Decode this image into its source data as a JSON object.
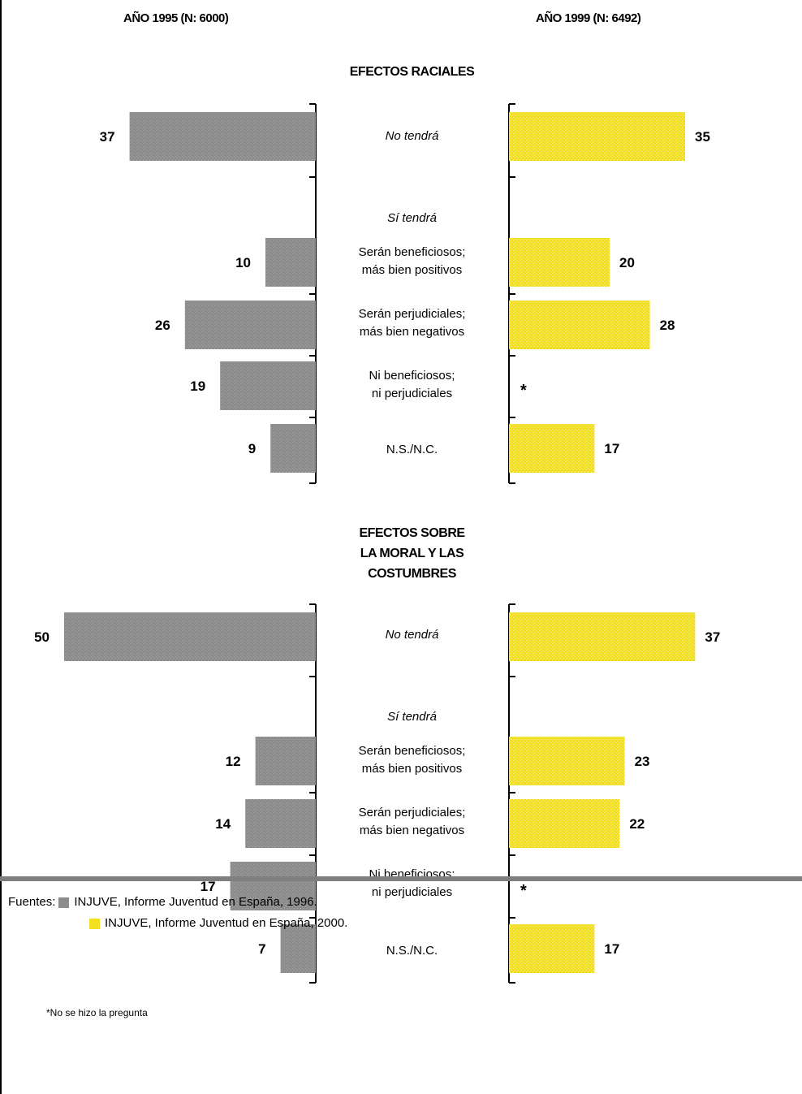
{
  "chart_data": {
    "type": "bar",
    "headers": {
      "left": "AÑO 1995 (N: 6000)",
      "right": "AÑO 1999 (N: 6492)"
    },
    "colors": {
      "left": "#8c8c8c",
      "right": "#f2e020"
    },
    "missing_marker": "*",
    "sections": [
      {
        "title_lines": [
          "EFECTOS RACIALES"
        ],
        "rows": [
          {
            "label_lines": [
              "No tendrá"
            ],
            "italic": true,
            "left": 37,
            "right": 35
          },
          {
            "label_lines": [
              "Sí tendrá"
            ],
            "italic": true,
            "header": true
          },
          {
            "label_lines": [
              "Serán beneficiosos;",
              "más bien positivos"
            ],
            "left": 10,
            "right": 20
          },
          {
            "label_lines": [
              "Serán perjudiciales;",
              "más bien negativos"
            ],
            "left": 26,
            "right": 28
          },
          {
            "label_lines": [
              "Ni beneficiosos;",
              "ni perjudiciales"
            ],
            "left": 19,
            "right": null
          },
          {
            "label_lines": [
              "N.S./N.C."
            ],
            "left": 9,
            "right": 17
          }
        ]
      },
      {
        "title_lines": [
          "EFECTOS SOBRE",
          "LA MORAL Y LAS",
          "COSTUMBRES"
        ],
        "rows": [
          {
            "label_lines": [
              "No tendrá"
            ],
            "italic": true,
            "left": 50,
            "right": 37
          },
          {
            "label_lines": [
              "Sí tendrá"
            ],
            "italic": true,
            "header": true
          },
          {
            "label_lines": [
              "Serán beneficiosos;",
              "más bien positivos"
            ],
            "left": 12,
            "right": 23
          },
          {
            "label_lines": [
              "Serán perjudiciales;",
              "más bien negativos"
            ],
            "left": 14,
            "right": 22
          },
          {
            "label_lines": [
              "Ni beneficiosos;",
              "ni perjudiciales"
            ],
            "left": 17,
            "right": null
          },
          {
            "label_lines": [
              "N.S./N.C."
            ],
            "left": 7,
            "right": 17
          }
        ]
      }
    ],
    "footnote": "*No se hizo la pregunta"
  },
  "sources": {
    "prefix": "Fuentes:",
    "items": [
      {
        "text": "INJUVE, Informe Juventud en España, 1996.",
        "color": "#8c8c8c"
      },
      {
        "text": "INJUVE, Informe Juventud en España, 2000.",
        "color": "#f2e020"
      }
    ]
  }
}
